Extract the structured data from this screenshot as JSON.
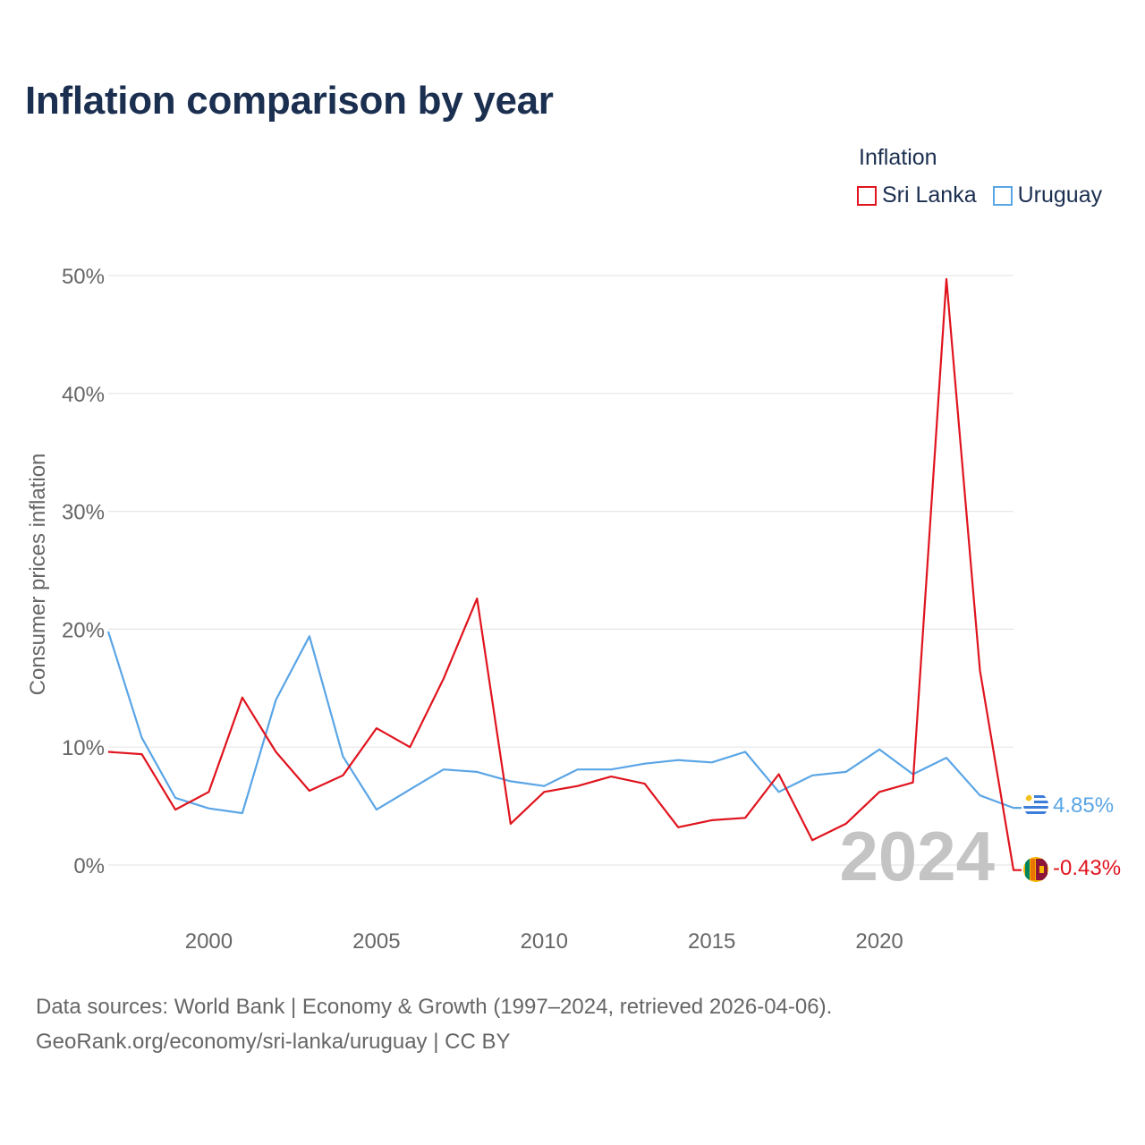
{
  "header": {
    "title": "Inflation comparison by year"
  },
  "legend": {
    "title": "Inflation",
    "items": [
      {
        "label": "Sri Lanka",
        "color": "#e0141e"
      },
      {
        "label": "Uruguay",
        "color": "#5aa5e6"
      }
    ]
  },
  "chart_data": {
    "type": "line",
    "title": "Inflation comparison by year",
    "xlabel": "",
    "ylabel": "Consumer prices inflation",
    "x": [
      1997,
      1998,
      1999,
      2000,
      2001,
      2002,
      2003,
      2004,
      2005,
      2006,
      2007,
      2008,
      2009,
      2010,
      2011,
      2012,
      2013,
      2014,
      2015,
      2016,
      2017,
      2018,
      2019,
      2020,
      2021,
      2022,
      2023,
      2024
    ],
    "xlim": [
      1997,
      2024
    ],
    "xticks": [
      2000,
      2005,
      2010,
      2015,
      2020
    ],
    "xtick_labels": [
      "2000",
      "2005",
      "2010",
      "2015",
      "2020"
    ],
    "ylim": [
      -4,
      52
    ],
    "yticks": [
      0,
      10,
      20,
      30,
      40,
      50
    ],
    "ytick_labels": [
      "0%",
      "10%",
      "20%",
      "30%",
      "40%",
      "50%"
    ],
    "grid": true,
    "year_watermark": "2024",
    "series": [
      {
        "name": "Sri Lanka",
        "color": "#e0141e",
        "end_label": "-0.43%",
        "values": [
          9.6,
          9.4,
          4.7,
          6.2,
          14.2,
          9.6,
          6.3,
          7.6,
          11.6,
          10.0,
          15.8,
          22.6,
          3.5,
          6.2,
          6.7,
          7.5,
          6.9,
          3.2,
          3.8,
          4.0,
          7.7,
          2.1,
          3.5,
          6.2,
          7.0,
          49.7,
          16.5,
          -0.43
        ]
      },
      {
        "name": "Uruguay",
        "color": "#5aa5e6",
        "end_label": "4.85%",
        "values": [
          19.8,
          10.8,
          5.7,
          4.8,
          4.4,
          14.0,
          19.4,
          9.2,
          4.7,
          6.4,
          8.1,
          7.9,
          7.1,
          6.7,
          8.1,
          8.1,
          8.6,
          8.9,
          8.7,
          9.6,
          6.2,
          7.6,
          7.9,
          9.8,
          7.7,
          9.1,
          5.9,
          4.85
        ]
      }
    ]
  },
  "footer": {
    "line1": "Data sources: World Bank | Economy & Growth (1997–2024, retrieved 2026-04-06).",
    "line2": "GeoRank.org/economy/sri-lanka/uruguay | CC BY"
  }
}
